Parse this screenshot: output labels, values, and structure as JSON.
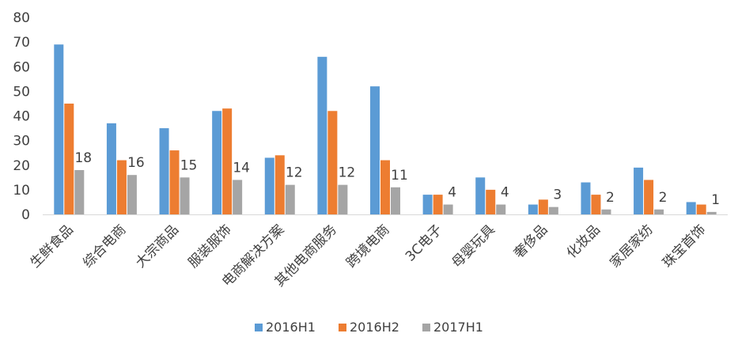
{
  "chart_data": {
    "type": "bar",
    "categories": [
      "生鲜食品",
      "综合电商",
      "大宗商品",
      "服装服饰",
      "电商解决方案",
      "其他电商服务",
      "跨境电商",
      "3C电子",
      "母婴玩具",
      "奢侈品",
      "化妆品",
      "家居家纺",
      "珠宝首饰"
    ],
    "series": [
      {
        "name": "2016H1",
        "color": "#5b9bd5",
        "values": [
          69,
          37,
          35,
          42,
          23,
          64,
          52,
          8,
          15,
          4,
          13,
          19,
          5
        ]
      },
      {
        "name": "2016H2",
        "color": "#ed7d31",
        "values": [
          45,
          22,
          26,
          43,
          24,
          42,
          22,
          8,
          10,
          6,
          8,
          14,
          4
        ]
      },
      {
        "name": "2017H1",
        "color": "#a5a5a5",
        "values": [
          18,
          16,
          15,
          14,
          12,
          12,
          11,
          4,
          4,
          3,
          2,
          2,
          1
        ]
      }
    ],
    "data_labels_series": "2017H1",
    "yticks": [
      0,
      10,
      20,
      30,
      40,
      50,
      60,
      70,
      80
    ],
    "ylim": [
      0,
      80
    ],
    "grid": false,
    "legend_position": "bottom"
  }
}
